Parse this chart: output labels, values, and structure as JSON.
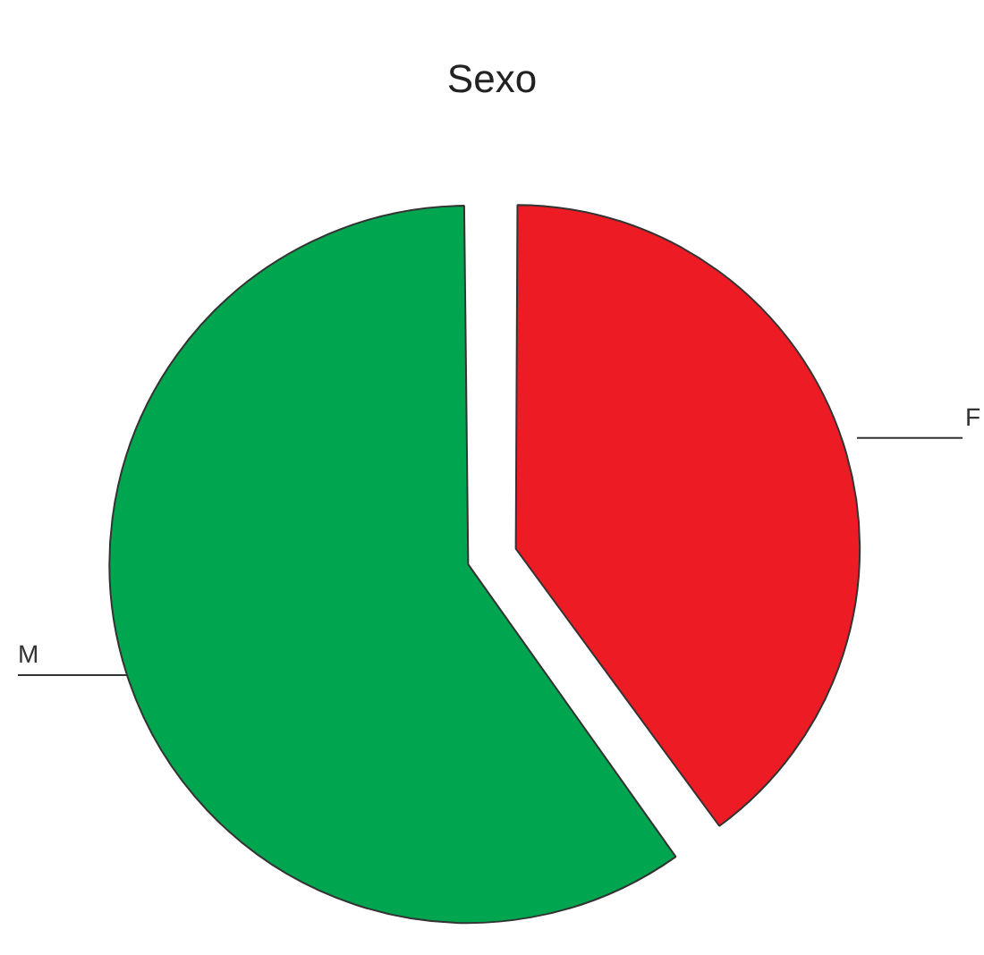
{
  "chart_data": {
    "type": "pie",
    "title": "Sexo",
    "categories": [
      "F",
      "M"
    ],
    "values": [
      40,
      60
    ],
    "colors": [
      "#ed1c24",
      "#00a54f"
    ],
    "legend": false
  }
}
